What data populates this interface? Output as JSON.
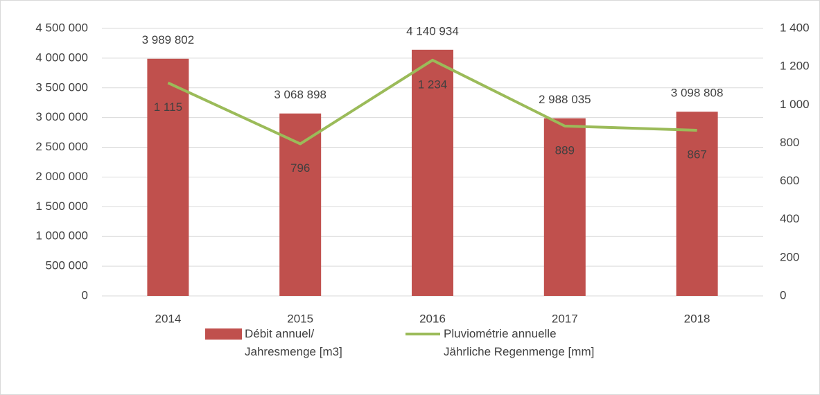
{
  "chart_data": {
    "type": "bar-line",
    "categories": [
      "2014",
      "2015",
      "2016",
      "2017",
      "2018"
    ],
    "series": [
      {
        "name": "Débit annuel/\nJahresmenge  [m3]",
        "type": "bar",
        "color": "#c0504d",
        "values": [
          3989802,
          3068898,
          4140934,
          2988035,
          3098808
        ],
        "value_labels": [
          "3 989 802",
          "3 068 898",
          "4 140 934",
          "2 988 035",
          "3 098 808"
        ]
      },
      {
        "name": "Pluviométrie annuelle\nJährliche Regenmenge [mm]",
        "type": "line",
        "axis": "y2",
        "color": "#9bbb59",
        "values": [
          1115,
          796,
          1234,
          889,
          867
        ],
        "value_labels": [
          "1 115",
          "796",
          "1 234",
          "889",
          "867"
        ]
      }
    ],
    "ylim": [
      0,
      4500000
    ],
    "yticks": [
      0,
      {
        "value": 500000,
        "label": "500 000"
      },
      {
        "value": 1000000,
        "label": "1 000 000"
      },
      {
        "value": 1500000,
        "label": "1 500 000"
      },
      {
        "value": 2000000,
        "label": "2 000 000"
      },
      {
        "value": 2500000,
        "label": "2 500 000"
      },
      {
        "value": 3000000,
        "label": "3 000 000"
      },
      {
        "value": 3500000,
        "label": "3 500 000"
      },
      {
        "value": 4000000,
        "label": "4 000 000"
      },
      {
        "value": 4500000,
        "label": "4 500 000"
      }
    ],
    "y2lim": [
      0,
      1400
    ],
    "y2ticks": [
      0,
      200,
      400,
      600,
      800,
      {
        "value": 1000,
        "label": "1 000"
      },
      {
        "value": 1200,
        "label": "1 200"
      },
      {
        "value": 1400,
        "label": "1 400"
      }
    ],
    "grid": true,
    "legend": "bottom"
  }
}
